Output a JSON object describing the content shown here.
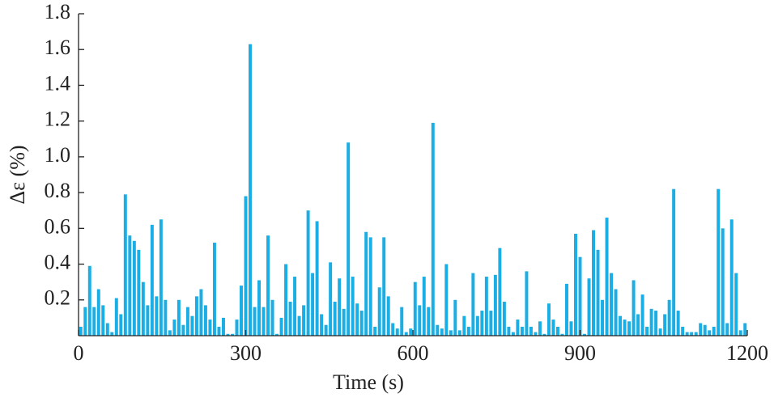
{
  "chart_data": {
    "type": "bar",
    "xlabel": "Time (s)",
    "ylabel": "Δε (%)",
    "color": "#1aaee5",
    "x": [
      4,
      12,
      20,
      28,
      36,
      44,
      52,
      60,
      68,
      76,
      84,
      92,
      100,
      108,
      116,
      124,
      132,
      140,
      148,
      156,
      164,
      172,
      180,
      188,
      196,
      204,
      212,
      220,
      228,
      236,
      244,
      252,
      260,
      268,
      276,
      284,
      292,
      300,
      308,
      316,
      324,
      332,
      340,
      348,
      356,
      364,
      372,
      380,
      388,
      396,
      404,
      412,
      420,
      428,
      436,
      444,
      452,
      460,
      468,
      476,
      484,
      492,
      500,
      508,
      516,
      524,
      532,
      540,
      548,
      556,
      564,
      572,
      580,
      588,
      596,
      604,
      612,
      620,
      628,
      636,
      644,
      652,
      660,
      668,
      676,
      684,
      692,
      700,
      708,
      716,
      724,
      732,
      740,
      748,
      756,
      764,
      772,
      780,
      788,
      796,
      804,
      812,
      820,
      828,
      836,
      844,
      852,
      860,
      868,
      876,
      884,
      892,
      900,
      908,
      916,
      924,
      932,
      940,
      948,
      956,
      964,
      972,
      980,
      988,
      996,
      1004,
      1012,
      1020,
      1028,
      1036,
      1044,
      1052,
      1060,
      1068,
      1076,
      1084,
      1092,
      1100,
      1108,
      1116,
      1124,
      1132,
      1140,
      1148,
      1156,
      1164,
      1172,
      1180,
      1188,
      1196
    ],
    "values": [
      0.05,
      0.16,
      0.39,
      0.16,
      0.26,
      0.17,
      0.07,
      0.02,
      0.21,
      0.12,
      0.79,
      0.56,
      0.53,
      0.48,
      0.3,
      0.17,
      0.62,
      0.22,
      0.65,
      0.2,
      0.03,
      0.09,
      0.2,
      0.06,
      0.16,
      0.11,
      0.22,
      0.26,
      0.17,
      0.09,
      0.52,
      0.05,
      0.1,
      0.01,
      0.01,
      0.09,
      0.28,
      0.78,
      1.63,
      0.16,
      0.31,
      0.16,
      0.56,
      0.2,
      0.01,
      0.1,
      0.4,
      0.19,
      0.33,
      0.11,
      0.17,
      0.7,
      0.35,
      0.64,
      0.12,
      0.06,
      0.41,
      0.19,
      0.32,
      0.15,
      1.08,
      0.33,
      0.18,
      0.14,
      0.58,
      0.55,
      0.05,
      0.27,
      0.55,
      0.22,
      0.07,
      0.04,
      0.16,
      0.02,
      0.04,
      0.3,
      0.17,
      0.33,
      0.16,
      1.19,
      0.06,
      0.04,
      0.4,
      0.03,
      0.2,
      0.03,
      0.11,
      0.05,
      0.35,
      0.11,
      0.14,
      0.33,
      0.14,
      0.34,
      0.49,
      0.19,
      0.05,
      0.02,
      0.09,
      0.05,
      0.36,
      0.05,
      0.02,
      0.08,
      0.01,
      0.18,
      0.09,
      0.05,
      0.01,
      0.29,
      0.08,
      0.57,
      0.44,
      0.01,
      0.32,
      0.59,
      0.48,
      0.2,
      0.66,
      0.35,
      0.26,
      0.11,
      0.09,
      0.08,
      0.31,
      0.12,
      0.23,
      0.05,
      0.15,
      0.14,
      0.04,
      0.12,
      0.2,
      0.82,
      0.14,
      0.05,
      0.02,
      0.02,
      0.02,
      0.07,
      0.06,
      0.03,
      0.05,
      0.82,
      0.6,
      0.07,
      0.65,
      0.35,
      0.03,
      0.07
    ],
    "xlim": [
      0,
      1200
    ],
    "xticks": [
      0,
      300,
      600,
      900,
      1200
    ],
    "ylim": [
      0,
      1.8
    ],
    "yticks": [
      0.2,
      0.4,
      0.6,
      0.8,
      {
        "value": 1,
        "label": "1.0"
      },
      1.2,
      1.4,
      1.6,
      1.8
    ],
    "grid": false
  }
}
